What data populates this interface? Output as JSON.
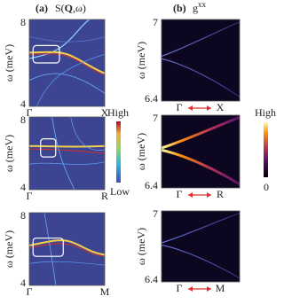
{
  "panel_a": {
    "label": "(a)",
    "title_pre": "S(",
    "title_bold": "Q",
    "title_post": ",ω)"
  },
  "panel_b": {
    "label": "(b)",
    "title_base": "g",
    "title_sup": "xx"
  },
  "y_label": "ω (meV)",
  "rows": [
    {
      "a": {
        "y_ticks": [
          "8",
          "4"
        ],
        "x_labels": [
          "Γ",
          "X"
        ]
      },
      "b": {
        "y_ticks": [
          "7",
          "6.4"
        ],
        "x_labels": [
          "Γ",
          "X"
        ]
      }
    },
    {
      "a": {
        "y_ticks": [
          "8",
          "4"
        ],
        "x_labels": [
          "Γ",
          "R"
        ]
      },
      "b": {
        "y_ticks": [
          "7",
          "6.4"
        ],
        "x_labels": [
          "Γ",
          "R"
        ]
      }
    },
    {
      "a": {
        "y_ticks": [
          "8",
          "4"
        ],
        "x_labels": [
          "Γ",
          "M"
        ]
      },
      "b": {
        "y_ticks": [
          "7",
          "6.4"
        ],
        "x_labels": [
          "Γ",
          "M"
        ]
      }
    }
  ],
  "colorbar_a": {
    "high": "High",
    "low": "Low"
  },
  "colorbar_b": {
    "high": "High",
    "low": "0"
  }
}
